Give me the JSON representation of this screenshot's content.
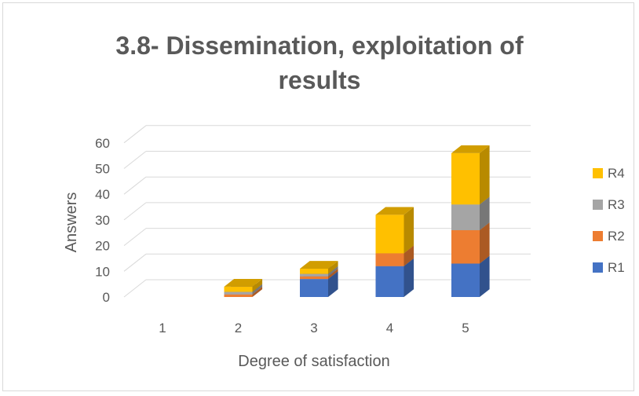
{
  "chart_data": {
    "type": "bar",
    "stacked": true,
    "style": "3d",
    "title_lines": [
      "3.8- Dissemination, exploitation of",
      "results"
    ],
    "xlabel": "Degree of satisfaction",
    "ylabel": "Answers",
    "categories": [
      "1",
      "2",
      "3",
      "4",
      "5"
    ],
    "ylim": [
      0,
      60
    ],
    "yticks": [
      "0",
      "10",
      "20",
      "30",
      "40",
      "50",
      "60"
    ],
    "grid": true,
    "legend_position": "right",
    "series": [
      {
        "name": "R1",
        "color": "#4472c4",
        "values": [
          0,
          0,
          7,
          12,
          13
        ]
      },
      {
        "name": "R2",
        "color": "#ed7d31",
        "values": [
          0,
          1,
          1,
          5,
          13
        ]
      },
      {
        "name": "R3",
        "color": "#a5a5a5",
        "values": [
          0,
          1,
          1,
          0,
          10
        ]
      },
      {
        "name": "R4",
        "color": "#ffc000",
        "values": [
          0,
          2,
          2,
          15,
          20
        ]
      }
    ]
  }
}
